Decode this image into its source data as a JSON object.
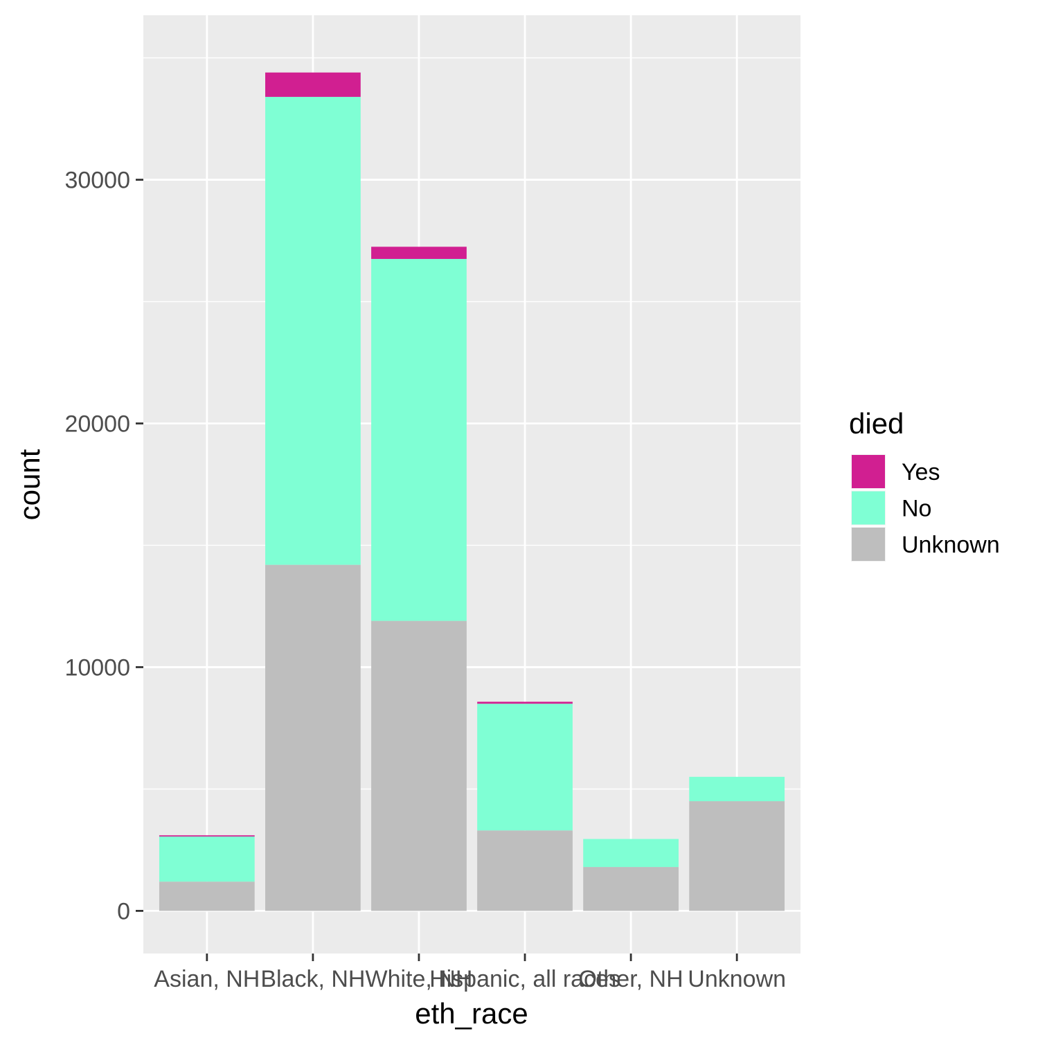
{
  "chart_data": {
    "type": "bar",
    "stacked": true,
    "xlabel": "eth_race",
    "ylabel": "count",
    "categories": [
      "Asian, NH",
      "Black, NH",
      "White, NH",
      "Hispanic, all races",
      "Other, NH",
      "Unknown"
    ],
    "series": [
      {
        "name": "Unknown",
        "color": "#bebebe",
        "values": [
          1200,
          14200,
          11900,
          3300,
          1800,
          4500
        ]
      },
      {
        "name": "No",
        "color": "#7fffd4",
        "values": [
          1850,
          19200,
          14850,
          5200,
          1150,
          1000
        ]
      },
      {
        "name": "Yes",
        "color": "#d11f91",
        "values": [
          50,
          1000,
          500,
          80,
          0,
          0
        ]
      }
    ],
    "y_ticks": [
      0,
      10000,
      20000,
      30000
    ],
    "y_tick_labels": [
      "0",
      "10000",
      "20000",
      "30000"
    ],
    "ylim": [
      -1750,
      36750
    ],
    "grid": true,
    "panel_background": "#ebebeb",
    "legend": {
      "title": "died",
      "placement": "right",
      "entries": [
        {
          "label": "Yes",
          "color": "#d11f91"
        },
        {
          "label": "No",
          "color": "#7fffd4"
        },
        {
          "label": "Unknown",
          "color": "#bebebe"
        }
      ]
    }
  }
}
